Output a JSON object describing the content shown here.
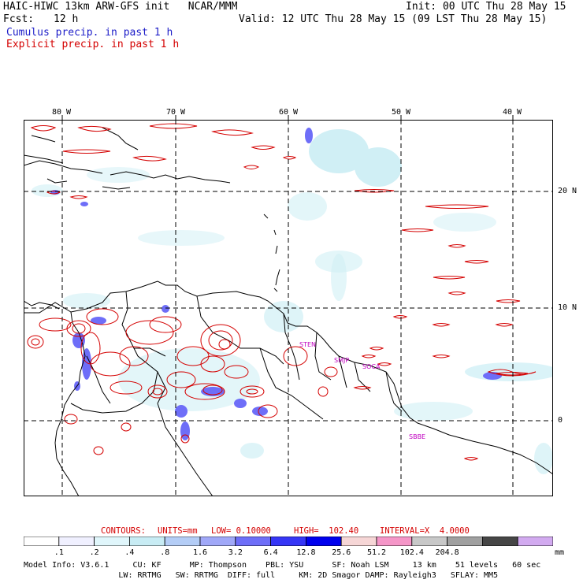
{
  "header": {
    "title": "HAIC-HIWC 13km ARW-GFS init   NCAR/MMM",
    "init": "Init: 00 UTC Thu 28 May 15",
    "fcst_label": "Fcst:",
    "fcst_value": "12 h",
    "valid": "Valid: 12 UTC Thu 28 May 15 (09 LST Thu 28 May 15)",
    "cumulus": "Cumulus precip. in past 1 h",
    "explicit": "Explicit precip. in past 1 h"
  },
  "axes": {
    "lon_labels": [
      "80 W",
      "70 W",
      "60 W",
      "50 W",
      "40 W"
    ],
    "lat_labels": [
      "20 N",
      "10 N",
      "0"
    ]
  },
  "cities": [
    "STEN",
    "SMJP",
    "SOCA",
    "SBBE"
  ],
  "contours": {
    "title": "CONTOURS:",
    "units": "UNITS=mm",
    "low": "LOW= 0.10000",
    "high": "HIGH=  102.40",
    "interval": "INTERVAL=X  4.0000"
  },
  "colorbar": {
    "labels": [
      ".1",
      ".2",
      ".4",
      ".8",
      "1.6",
      "3.2",
      "6.4",
      "12.8",
      "25.6",
      "51.2",
      "102.4",
      "204.8"
    ],
    "unit": "mm",
    "colors": [
      "#ffffff",
      "#f0f0ff",
      "#e0f6fb",
      "#c8ecf4",
      "#b4cdf6",
      "#a0a8f8",
      "#6e6ef8",
      "#3636f6",
      "#0000ee",
      "#f6d6d6",
      "#f596c8",
      "#c8c8c8",
      "#a0a0a0",
      "#464646",
      "#d2aaf0"
    ]
  },
  "model_info": {
    "line1": "Model Info: V3.6.1     CU: KF      MP: Thompson    PBL: YSU      SF: Noah LSM     13 km    51 levels   60 sec",
    "line2": "                    LW: RRTMG   SW: RRTMG  DIFF: full     KM: 2D Smagor DAMP: Rayleigh3   SFLAY: MM5"
  }
}
